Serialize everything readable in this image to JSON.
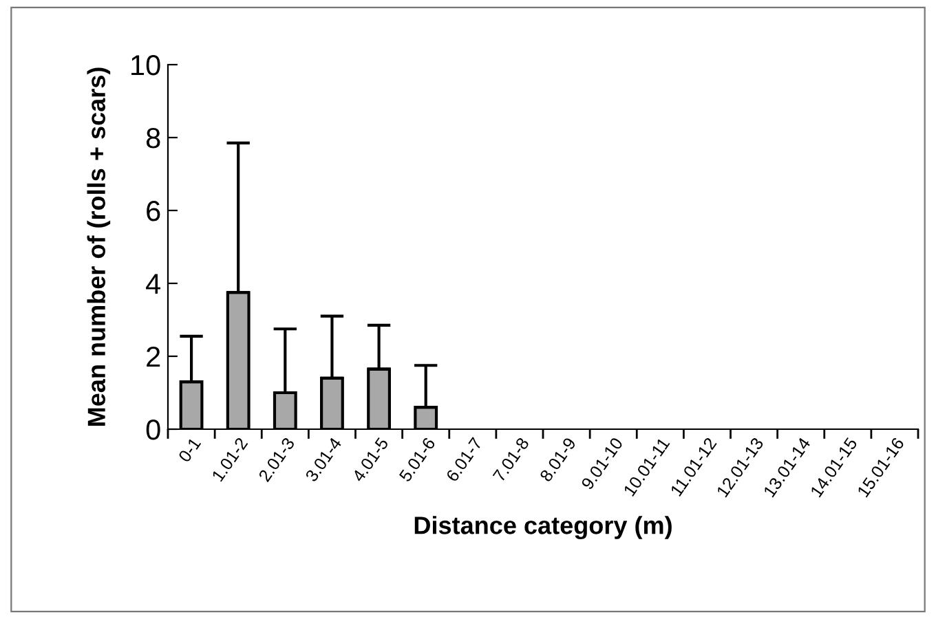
{
  "chart_data": {
    "type": "bar",
    "xlabel": "Distance category (m)",
    "ylabel": "Mean number of (rolls + scars)",
    "categories": [
      "0-1",
      "1.01-2",
      "2.01-3",
      "3.01-4",
      "4.01-5",
      "5.01-6",
      "6.01-7",
      "7.01-8",
      "8.01-9",
      "9.01-10",
      "10.01-11",
      "11.01-12",
      "12.01-13",
      "13.01-14",
      "14.01-15",
      "15.01-16"
    ],
    "values": [
      1.3,
      3.75,
      1.0,
      1.4,
      1.65,
      0.6,
      0,
      0,
      0,
      0,
      0,
      0,
      0,
      0,
      0,
      0
    ],
    "errors": [
      [
        1.3,
        2.55
      ],
      [
        3.75,
        7.85
      ],
      [
        1.0,
        2.75
      ],
      [
        1.4,
        3.1
      ],
      [
        1.65,
        2.85
      ],
      [
        0.6,
        1.75
      ],
      null,
      null,
      null,
      null,
      null,
      null,
      null,
      null,
      null,
      null
    ],
    "color": "#a8a8a8",
    "ylim": [
      0,
      10
    ],
    "yticks": [
      0,
      2,
      4,
      6,
      8,
      10
    ],
    "grid": false,
    "legend": false
  }
}
